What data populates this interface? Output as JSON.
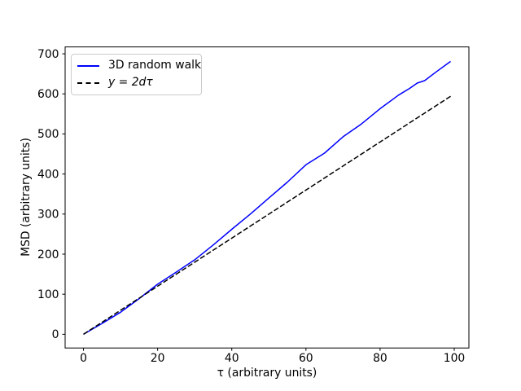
{
  "figure": {
    "background_color": "#ffffff",
    "axes_edge_color": "#000000",
    "text_color": "#000000"
  },
  "chart_data": {
    "type": "line",
    "title": "",
    "xlabel": "τ (arbitrary units)",
    "ylabel": "MSD (arbitrary units)",
    "x_ticks": [
      0,
      20,
      40,
      60,
      80,
      100
    ],
    "y_ticks": [
      0,
      100,
      200,
      300,
      400,
      500,
      600,
      700
    ],
    "xlim": [
      -4.95,
      103.95
    ],
    "ylim": [
      -34.2,
      717.2
    ],
    "grid": false,
    "legend_position": "upper-left",
    "series": [
      {
        "name": "3D random walk",
        "color": "#0000ff",
        "style": "solid",
        "x": [
          0,
          5,
          10,
          15,
          20,
          25,
          30,
          35,
          40,
          45,
          50,
          55,
          60,
          65,
          70,
          75,
          80,
          85,
          88,
          90,
          92,
          95,
          99
        ],
        "values": [
          0,
          27,
          55,
          89,
          125,
          155,
          186,
          223,
          262,
          300,
          340,
          380,
          423,
          452,
          493,
          525,
          563,
          597,
          614,
          627,
          633,
          654,
          681
        ]
      },
      {
        "name": "y = 2dτ",
        "color": "#000000",
        "style": "dashed",
        "slope": 6,
        "x": [
          0,
          99
        ],
        "values": [
          0,
          594
        ]
      }
    ],
    "legend": {
      "entries": [
        {
          "label": "3D random walk",
          "color": "#0000ff",
          "style": "solid"
        },
        {
          "label": "y = 2dτ",
          "color": "#000000",
          "style": "dashed",
          "italic": true
        }
      ]
    }
  }
}
